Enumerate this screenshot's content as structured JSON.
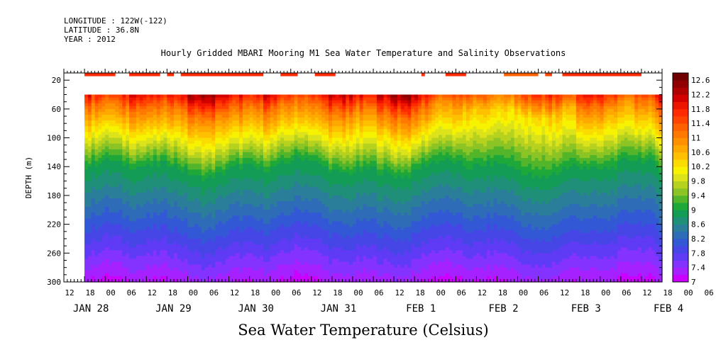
{
  "header": {
    "longitude": "LONGITUDE : 122W(-122)",
    "latitude": "LATITUDE : 36.8N",
    "year": "YEAR : 2012"
  },
  "title": "Hourly Gridded MBARI Mooring M1 Sea Water Temperature and Salinity Observations",
  "main_title": "Sea Water Temperature (Celsius)",
  "chart_data": {
    "type": "heatmap",
    "title": "Hourly Gridded MBARI Mooring M1 Sea Water Temperature and Salinity Observations",
    "ylabel": "DEPTH (m)",
    "xlabel": "",
    "ylim": [
      300,
      10
    ],
    "y_inverted": true,
    "y_ticks": [
      "20",
      "60",
      "100",
      "140",
      "180",
      "220",
      "260",
      "300"
    ],
    "x_hour_ticks": [
      "12",
      "18",
      "00",
      "06",
      "12",
      "18",
      "00",
      "06",
      "12",
      "18",
      "00",
      "06",
      "12",
      "18",
      "00",
      "06",
      "12",
      "18",
      "00",
      "06",
      "12",
      "18",
      "00",
      "06",
      "12",
      "18",
      "00",
      "06",
      "12",
      "18",
      "00",
      "06"
    ],
    "x_date_labels": [
      "JAN 28",
      "JAN 29",
      "JAN 30",
      "JAN 31",
      "FEB  1",
      "FEB  2",
      "FEB  3",
      "FEB  4"
    ],
    "time_range_hours": [
      0,
      174
    ],
    "data_start_hour": 6,
    "data_end_hour": 174,
    "colorbar": {
      "levels": [
        "7",
        "7.4",
        "7.8",
        "8.2",
        "8.6",
        "9",
        "9.4",
        "9.8",
        "10.2",
        "10.6",
        "11",
        "11.4",
        "11.8",
        "12.2",
        "12.6"
      ],
      "min": 7.0,
      "max": 12.8,
      "step": 0.2,
      "colors": [
        "#cc00ff",
        "#a621ff",
        "#8433ff",
        "#5f3bf5",
        "#4646e6",
        "#3358d6",
        "#2e6cb8",
        "#2a7e9a",
        "#1f8f78",
        "#139c55",
        "#1fa83a",
        "#52b52a",
        "#8cc426",
        "#b7d21e",
        "#dde31a",
        "#f7f300",
        "#fbdc00",
        "#ffc000",
        "#ffa800",
        "#ff9000",
        "#ff7800",
        "#ff6000",
        "#ff4400",
        "#ff2a00",
        "#ee1500",
        "#d40000",
        "#b00000",
        "#900000",
        "#700000"
      ]
    },
    "surface_bars": [
      [
        6,
        10
      ],
      [
        10,
        15
      ],
      [
        19,
        28
      ],
      [
        30,
        32
      ],
      [
        34,
        58
      ],
      [
        63,
        68
      ],
      [
        73,
        79
      ],
      [
        104,
        105
      ],
      [
        111,
        117
      ],
      [
        128,
        138
      ],
      [
        140,
        142
      ],
      [
        145,
        168
      ]
    ],
    "surface_colors": [
      "#ff2a00",
      "#ff2a00",
      "#ff2a00",
      "#ff2a00",
      "#ff2a00",
      "#ff2a00",
      "#ff2a00",
      "#ff2a00",
      "#ff2a00",
      "#ff6000",
      "#ff4400",
      "#ff2a00"
    ],
    "depth_profile_surface_temp": [
      11.9,
      11.9,
      12.0,
      11.9,
      11.8,
      11.9,
      11.9,
      12.0,
      12.0,
      11.8,
      11.9,
      12.0,
      11.7,
      11.4,
      11.2,
      11.1,
      11.3,
      11.8,
      11.6,
      11.9
    ]
  }
}
